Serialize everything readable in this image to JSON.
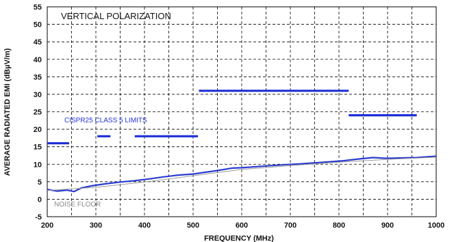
{
  "chart_data": {
    "type": "line",
    "xlabel": "FREQUENCY (MHz)",
    "ylabel": "AVERAGE RADIATED EMI (dBµV/m)",
    "xlim": [
      200,
      1000
    ],
    "ylim": [
      -5,
      55
    ],
    "x_ticks": [
      "200",
      "300",
      "400",
      "500",
      "600",
      "700",
      "800",
      "900",
      "1000"
    ],
    "y_ticks": [
      "-5",
      "0",
      "5",
      "10",
      "15",
      "20",
      "25",
      "30",
      "35",
      "40",
      "45",
      "50",
      "55"
    ],
    "grid": "dashed",
    "annotations": {
      "title": "VERTICAL POLARIZATION",
      "limits_label": "CISPR25 CLASS 5 LIMITS",
      "noise_floor_label": "NOISE FLOOR"
    },
    "series": [
      {
        "name": "",
        "style": "step-limit",
        "color": "#1f2fd6",
        "segments": [
          {
            "x": [
              200,
              245
            ],
            "y": 16
          },
          {
            "x": [
              303,
              330
            ],
            "y": 18
          },
          {
            "x": [
              380,
              510
            ],
            "y": 18
          },
          {
            "x": [
              512,
              820
            ],
            "y": 31
          },
          {
            "x": [
              820,
              960
            ],
            "y": 24
          }
        ]
      },
      {
        "name": "",
        "style": "measured",
        "color": "#2a3bd0",
        "x": [
          200,
          220,
          240,
          255,
          270,
          290,
          320,
          350,
          380,
          410,
          440,
          470,
          500,
          520,
          550,
          580,
          600,
          630,
          660,
          690,
          720,
          750,
          780,
          810,
          840,
          870,
          900,
          930,
          960,
          990,
          1000
        ],
        "y": [
          2.8,
          2.3,
          2.6,
          2.2,
          3.2,
          3.8,
          4.4,
          4.9,
          5.3,
          5.8,
          6.4,
          6.9,
          7.2,
          7.6,
          8.2,
          8.9,
          9.0,
          9.3,
          9.6,
          9.9,
          10.1,
          10.4,
          10.7,
          11.0,
          11.5,
          11.9,
          11.7,
          11.8,
          11.9,
          12.2,
          12.3
        ]
      },
      {
        "name": "",
        "style": "noise-floor",
        "color": "#9a9a9a",
        "x": [
          200,
          300,
          400,
          500,
          600,
          700,
          800,
          900,
          1000
        ],
        "y": [
          2.5,
          3.4,
          4.9,
          6.7,
          8.5,
          9.6,
          10.6,
          11.4,
          12.0
        ]
      }
    ]
  }
}
